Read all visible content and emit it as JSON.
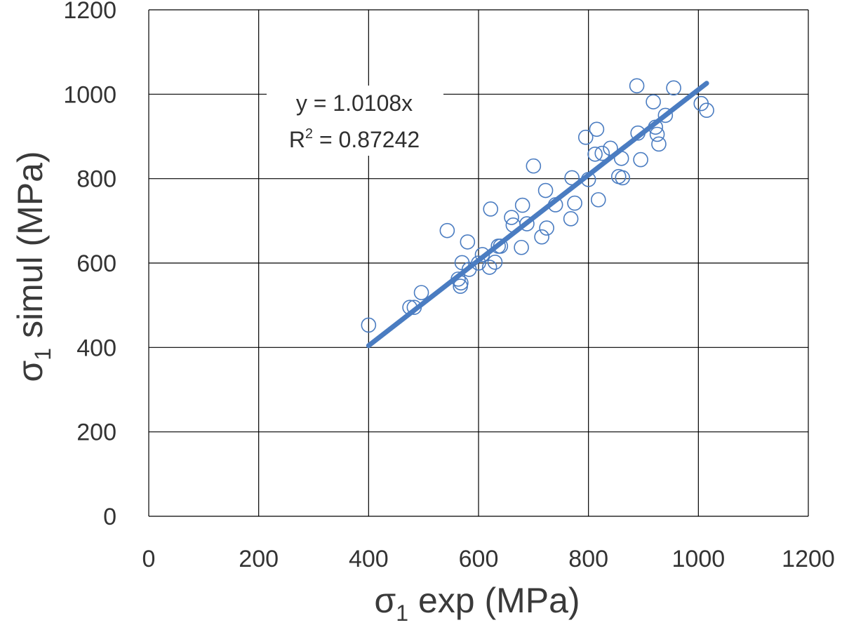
{
  "chart_data": {
    "type": "scatter",
    "xlabel": {
      "main": "σ",
      "sub": "1",
      "rest": " exp (MPa)"
    },
    "ylabel": {
      "main": "σ",
      "sub": "1",
      "rest": " simul (MPa)"
    },
    "xlim": [
      0,
      1200
    ],
    "ylim": [
      0,
      1200
    ],
    "xticks": [
      "0",
      "200",
      "400",
      "600",
      "800",
      "1000",
      "1200"
    ],
    "yticks": [
      "0",
      "200",
      "400",
      "600",
      "800",
      "1000",
      "1200"
    ],
    "grid": true,
    "colors": {
      "points": "#4a7cc1",
      "trendline": "#4a7cc1",
      "grid": "#000000"
    },
    "trendline": {
      "slope": 1.0108,
      "x_range": [
        400,
        1015
      ],
      "equation": "y = 1.0108x",
      "r2_prefix": "R",
      "r2_sup": "2",
      "r2_value": " = 0.87242"
    },
    "points": [
      [
        400,
        453
      ],
      [
        475,
        495
      ],
      [
        483,
        495
      ],
      [
        496,
        530
      ],
      [
        543,
        677
      ],
      [
        563,
        562
      ],
      [
        567,
        545
      ],
      [
        568,
        553
      ],
      [
        570,
        601
      ],
      [
        580,
        650
      ],
      [
        583,
        585
      ],
      [
        600,
        600
      ],
      [
        607,
        620
      ],
      [
        620,
        590
      ],
      [
        622,
        728
      ],
      [
        630,
        602
      ],
      [
        636,
        640
      ],
      [
        640,
        640
      ],
      [
        660,
        708
      ],
      [
        663,
        690
      ],
      [
        678,
        637
      ],
      [
        680,
        737
      ],
      [
        688,
        693
      ],
      [
        700,
        830
      ],
      [
        715,
        662
      ],
      [
        722,
        772
      ],
      [
        724,
        683
      ],
      [
        740,
        738
      ],
      [
        768,
        705
      ],
      [
        770,
        802
      ],
      [
        775,
        742
      ],
      [
        795,
        898
      ],
      [
        800,
        798
      ],
      [
        812,
        858
      ],
      [
        815,
        917
      ],
      [
        818,
        750
      ],
      [
        825,
        860
      ],
      [
        840,
        872
      ],
      [
        855,
        805
      ],
      [
        860,
        848
      ],
      [
        862,
        802
      ],
      [
        888,
        1020
      ],
      [
        890,
        908
      ],
      [
        895,
        845
      ],
      [
        918,
        982
      ],
      [
        922,
        922
      ],
      [
        925,
        905
      ],
      [
        928,
        882
      ],
      [
        940,
        950
      ],
      [
        955,
        1015
      ],
      [
        1005,
        978
      ],
      [
        1015,
        962
      ]
    ]
  }
}
